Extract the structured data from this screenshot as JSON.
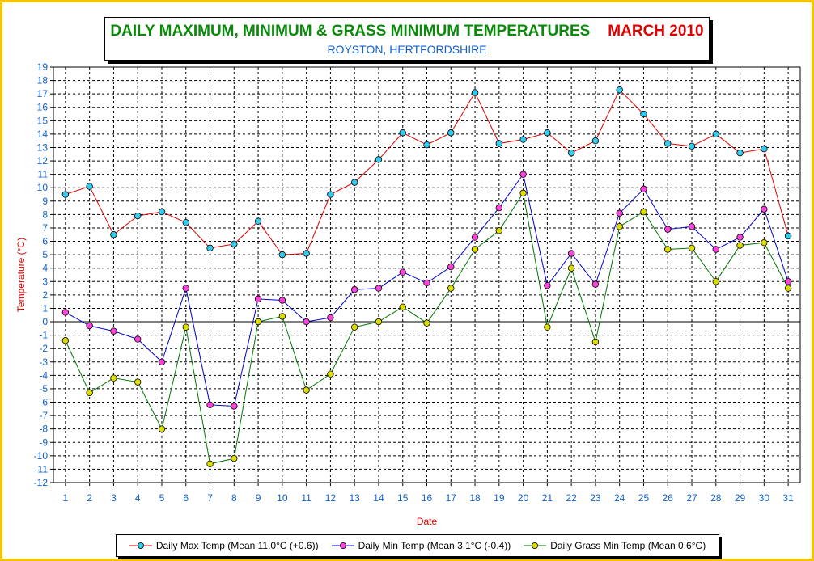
{
  "title": {
    "main": "DAILY MAXIMUM, MINIMUM & GRASS MINIMUM TEMPERATURES",
    "period": "MARCH 2010",
    "subtitle": "ROYSTON, HERTFORDSHIRE"
  },
  "colors": {
    "frame": "#f5c400",
    "title_main": "#0a8a0a",
    "title_period": "#e00000",
    "subtitle": "#1060d0",
    "axis_label": "#e00000",
    "tick_label": "#1060d0"
  },
  "chart_data": {
    "type": "line",
    "title": "DAILY MAXIMUM, MINIMUM & GRASS MINIMUM TEMPERATURES",
    "xlabel": "Date",
    "ylabel": "Temperature (°C)",
    "ylim": [
      -12,
      19
    ],
    "grid": true,
    "legend_position": "bottom",
    "x": [
      1,
      2,
      3,
      4,
      5,
      6,
      7,
      8,
      9,
      10,
      11,
      12,
      13,
      14,
      15,
      16,
      17,
      18,
      19,
      20,
      21,
      22,
      23,
      24,
      25,
      26,
      27,
      28,
      29,
      30,
      31
    ],
    "yticks": [
      19,
      18,
      17,
      16,
      15,
      14,
      13,
      12,
      11,
      10,
      9,
      8,
      7,
      6,
      5,
      4,
      3,
      2,
      1,
      0,
      -1,
      -2,
      -3,
      -4,
      -5,
      -6,
      -7,
      -8,
      -9,
      -10,
      -11,
      -12
    ],
    "series": [
      {
        "name": "Daily Max Temp (Mean 11.0°C (+0.6))",
        "line_color": "#e00000",
        "marker_color": "#33ccee",
        "values": [
          9.5,
          10.1,
          6.5,
          7.9,
          8.2,
          7.4,
          5.5,
          5.8,
          7.5,
          5.0,
          5.1,
          9.5,
          10.4,
          12.1,
          14.1,
          13.2,
          14.1,
          17.1,
          13.3,
          13.6,
          14.1,
          12.6,
          13.5,
          17.3,
          15.5,
          13.3,
          13.1,
          14.0,
          12.6,
          12.9,
          6.4
        ]
      },
      {
        "name": "Daily Min Temp (Mean 3.1°C (-0.4))",
        "line_color": "#0000cc",
        "marker_color": "#ff44dd",
        "values": [
          0.7,
          -0.3,
          -0.7,
          -1.3,
          -3.0,
          2.5,
          -6.2,
          -6.3,
          1.7,
          1.6,
          0.0,
          0.3,
          2.4,
          2.5,
          3.7,
          2.9,
          4.1,
          6.3,
          8.5,
          11.0,
          2.7,
          5.1,
          2.8,
          8.1,
          9.9,
          6.9,
          7.1,
          5.4,
          6.3,
          8.4,
          3.0
        ]
      },
      {
        "name": "Daily Grass Min Temp (Mean 0.6°C)",
        "line_color": "#007700",
        "marker_color": "#dddd00",
        "values": [
          -1.4,
          -5.3,
          -4.2,
          -4.5,
          -8.0,
          -0.4,
          -10.6,
          -10.2,
          0.0,
          0.4,
          -5.1,
          -3.9,
          -0.4,
          0.0,
          1.1,
          -0.1,
          2.5,
          5.4,
          6.8,
          9.6,
          -0.4,
          4.0,
          -1.5,
          7.1,
          8.2,
          5.4,
          5.5,
          3.0,
          5.7,
          5.9,
          2.5
        ]
      }
    ]
  }
}
